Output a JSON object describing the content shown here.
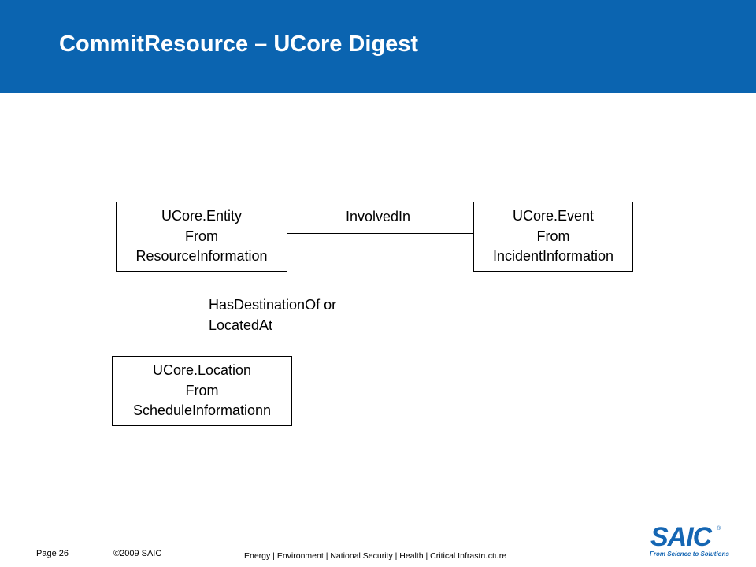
{
  "slide": {
    "title": "CommitResource – UCore Digest"
  },
  "diagram": {
    "nodes": {
      "entity": {
        "line1": "UCore.Entity",
        "line2": "From",
        "line3": "ResourceInformation"
      },
      "event": {
        "line1": "UCore.Event",
        "line2": "From",
        "line3": "IncidentInformation"
      },
      "location": {
        "line1": "UCore.Location",
        "line2": "From",
        "line3": "ScheduleInformationn"
      }
    },
    "edges": {
      "involved_in": "InvolvedIn",
      "destination_line1": "HasDestinationOf or",
      "destination_line2": "LocatedAt"
    }
  },
  "footer": {
    "page": "Page 26",
    "copyright": "©2009 SAIC",
    "tagline": "Energy | Environment | National Security | Health | Critical Infrastructure",
    "logo_text": "SAIC",
    "logo_registered": "®",
    "logo_slogan": "From Science to Solutions"
  },
  "colors": {
    "header_bg": "#0b64b0",
    "logo": "#1566b3"
  }
}
